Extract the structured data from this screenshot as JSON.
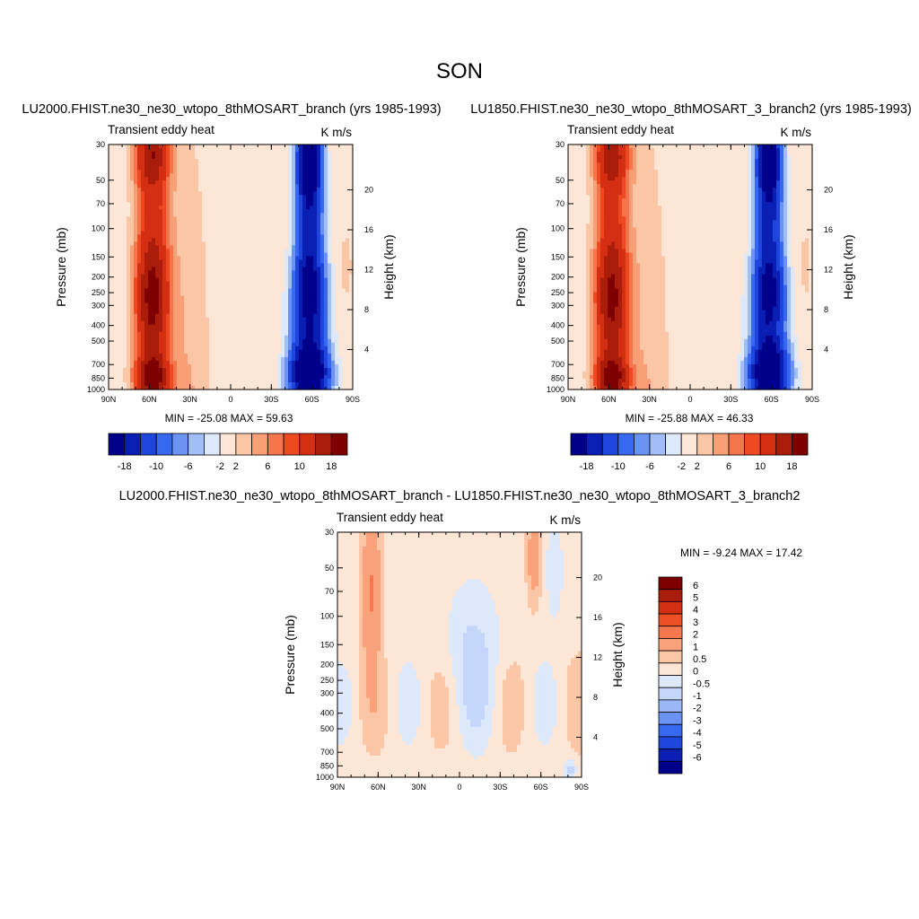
{
  "figure": {
    "title": "SON"
  },
  "colors": {
    "diverging_12": [
      "#00008b",
      "#0a1fb4",
      "#1e46dc",
      "#3768f0",
      "#6a93f3",
      "#a3bdf8",
      "#dde8fb",
      "#fde6d5",
      "#fbc6a6",
      "#f89f76",
      "#f5754c",
      "#ee4a22",
      "#d42f12",
      "#ab1d0b",
      "#7e0000"
    ],
    "diverging_diff": [
      "#00008b",
      "#0a1fb4",
      "#1e46dc",
      "#3768f0",
      "#6a93f3",
      "#9bb7f6",
      "#c4d6f9",
      "#dde8fb",
      "#fde6d5",
      "#fbc6a6",
      "#f9a27a",
      "#f6774e",
      "#ef4f26",
      "#d42f12",
      "#ab1d0b",
      "#7e0000"
    ]
  },
  "chart_data": [
    {
      "type": "heatmap",
      "title": "LU2000.FHIST.ne30_ne30_wtopo_8thMOSART_branch (yrs 1985-1993)",
      "left_label": "Transient eddy heat",
      "right_label": "K m/s",
      "xlabel": "",
      "ylabel": "Pressure (mb)",
      "y2label": "Height (km)",
      "x_ticks": [
        "90N",
        "60N",
        "30N",
        "0",
        "30S",
        "60S",
        "90S"
      ],
      "y_ticks": [
        30,
        50,
        70,
        100,
        150,
        200,
        250,
        300,
        400,
        500,
        700,
        850,
        1000
      ],
      "y2_ticks": [
        4,
        8,
        12,
        16,
        20
      ],
      "min_max": "MIN = -25.08  MAX =  59.63",
      "colorbar_labels": [
        "-18",
        "-10",
        "-6",
        "-2",
        "2",
        "6",
        "10",
        "18"
      ]
    },
    {
      "type": "heatmap",
      "title": "LU1850.FHIST.ne30_ne30_wtopo_8thMOSART_3_branch2 (yrs 1985-1993)",
      "left_label": "Transient eddy heat",
      "right_label": "K m/s",
      "xlabel": "",
      "ylabel": "Pressure (mb)",
      "y2label": "Height (km)",
      "x_ticks": [
        "90N",
        "60N",
        "30N",
        "0",
        "30S",
        "60S",
        "90S"
      ],
      "y_ticks": [
        30,
        50,
        70,
        100,
        150,
        200,
        250,
        300,
        400,
        500,
        700,
        850,
        1000
      ],
      "y2_ticks": [
        4,
        8,
        12,
        16,
        20
      ],
      "min_max": "MIN = -25.88  MAX =  46.33",
      "colorbar_labels": [
        "-18",
        "-10",
        "-6",
        "-2",
        "2",
        "6",
        "10",
        "18"
      ]
    },
    {
      "type": "heatmap",
      "title": "LU2000.FHIST.ne30_ne30_wtopo_8thMOSART_branch - LU1850.FHIST.ne30_ne30_wtopo_8thMOSART_3_branch2",
      "left_label": "Transient eddy heat",
      "right_label": "K m/s",
      "xlabel": "",
      "ylabel": "Pressure (mb)",
      "y2label": "Height (km)",
      "x_ticks": [
        "90N",
        "60N",
        "30N",
        "0",
        "30S",
        "60S",
        "90S"
      ],
      "y_ticks": [
        30,
        50,
        70,
        100,
        150,
        200,
        250,
        300,
        400,
        500,
        700,
        850,
        1000
      ],
      "y2_ticks": [
        4,
        8,
        12,
        16,
        20
      ],
      "min_max": "MIN =  -9.24  MAX =  17.42",
      "colorbar_labels": [
        "6",
        "5",
        "4",
        "3",
        "2",
        "1",
        "0.5",
        "0",
        "-0.5",
        "-1",
        "-2",
        "-3",
        "-4",
        "-5",
        "-6"
      ]
    }
  ]
}
